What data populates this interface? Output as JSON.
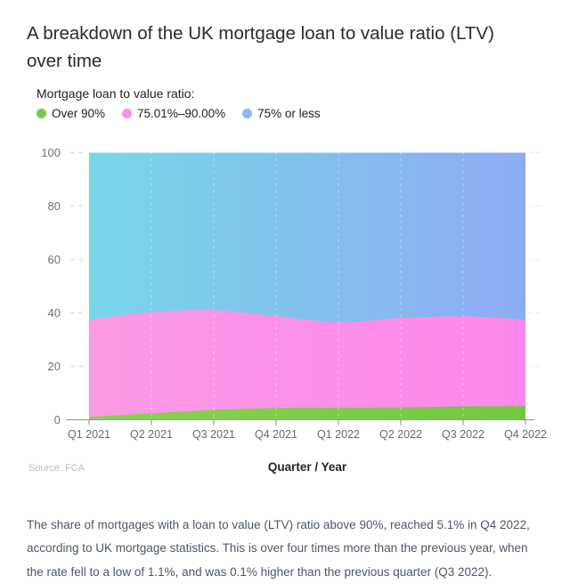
{
  "page": {
    "title": "A breakdown of the UK mortgage loan to value ratio (LTV) over time",
    "source": "Source: FCA",
    "footnote": "The share of mortgages with a loan to value (LTV) ratio above 90%, reached 5.1% in Q4 2022, according to UK mortgage statistics. This is over four times more than the previous year, when the rate fell to a low of 1.1%, and was 0.1% higher than the previous quarter (Q3 2022)."
  },
  "legend": {
    "title": "Mortgage loan to value ratio:",
    "items": [
      {
        "label": "Over 90%",
        "color": "#7dca4a"
      },
      {
        "label": "75.01%–90.00%",
        "color": "#f792e6"
      },
      {
        "label": "75% or less",
        "color": "#8db6f2"
      }
    ]
  },
  "chart_data": {
    "type": "area",
    "stacked": true,
    "stack_total": 100,
    "title": "",
    "xlabel": "Quarter / Year",
    "ylabel": "",
    "ylim": [
      0,
      100
    ],
    "y_ticks": [
      0,
      20,
      40,
      60,
      80,
      100
    ],
    "grid": "vertical-dashed-white",
    "legend_position": "top-left",
    "x": [
      "Q1 2021",
      "Q2 2021",
      "Q3 2021",
      "Q4 2021",
      "Q1 2022",
      "Q2 2022",
      "Q3 2022",
      "Q4 2022"
    ],
    "series": [
      {
        "name": "Over 90%",
        "values": [
          1.1,
          2.4,
          3.7,
          4.4,
          4.5,
          4.6,
          5.0,
          5.1
        ],
        "color_start": "#8bd055",
        "color_end": "#72c93d"
      },
      {
        "name": "75.01%–90.00%",
        "values": [
          36.4,
          37.9,
          37.3,
          34.4,
          32.0,
          33.5,
          33.7,
          32.4
        ],
        "color_start": "#fb9ae6",
        "color_end": "#fc88ec"
      },
      {
        "name": "75% or less",
        "values": [
          62.5,
          59.7,
          59.0,
          61.2,
          63.5,
          61.9,
          61.3,
          62.5
        ],
        "color_start": "#79d7e9",
        "color_end": "#8dabf3"
      }
    ],
    "axis_colors": {
      "baseline": "#9aa0a6",
      "tick_label": "#717171",
      "left_stub": "#d8d8d8",
      "right_stub": "#e8e8e8",
      "inner_grid": "rgba(255,255,255,0.55)"
    }
  }
}
